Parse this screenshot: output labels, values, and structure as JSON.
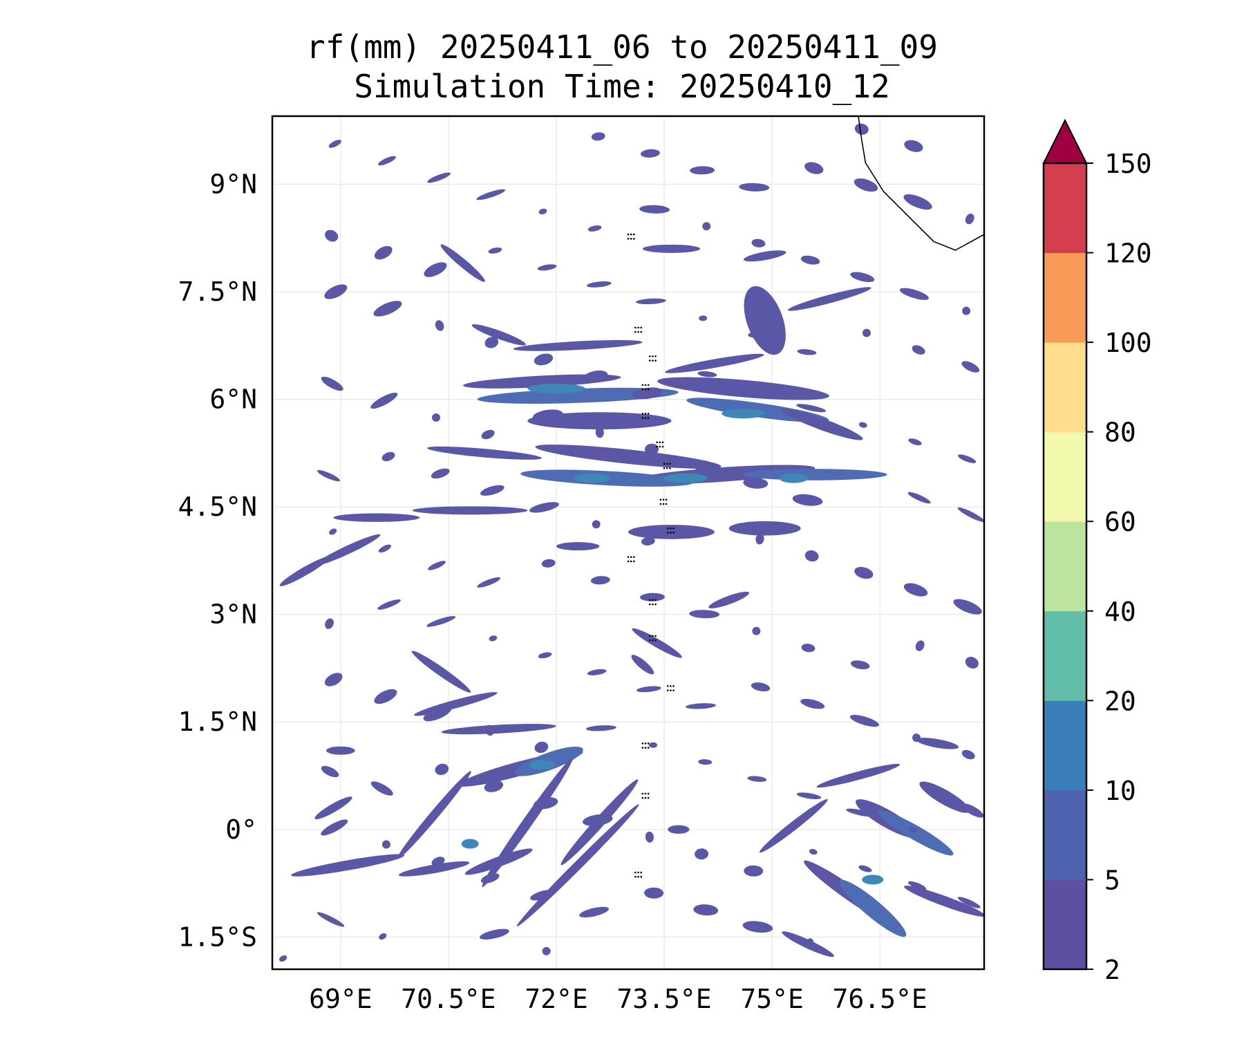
{
  "title": {
    "line1": "rf(mm) 20250411_06 to 20250411_09",
    "line2": "Simulation Time: 20250410_12"
  },
  "map": {
    "lon_labels": [
      "69°E",
      "70.5°E",
      "72°E",
      "73.5°E",
      "75°E",
      "76.5°E"
    ],
    "lon_values": [
      69,
      70.5,
      72,
      73.5,
      75,
      76.5
    ],
    "lat_labels": [
      "9°N",
      "7.5°N",
      "6°N",
      "4.5°N",
      "3°N",
      "1.5°N",
      "0°",
      "1.5°S"
    ],
    "lat_values": [
      9,
      7.5,
      6,
      4.5,
      3,
      1.5,
      0,
      -1.5
    ],
    "lon_range": [
      68.05,
      77.95
    ],
    "lat_range": [
      -1.95,
      9.95
    ],
    "grid": true
  },
  "colorbar": {
    "levels": [
      2,
      5,
      10,
      20,
      40,
      60,
      80,
      100,
      120,
      150
    ],
    "labels": [
      "2",
      "5",
      "10",
      "20",
      "40",
      "60",
      "80",
      "100",
      "120",
      "150"
    ],
    "colors": [
      "#5e4fa2",
      "#4e62b0",
      "#3a7eb8",
      "#63bea9",
      "#bbe49e",
      "#f3f9ac",
      "#fedd8d",
      "#f89b59",
      "#d43e4f"
    ],
    "extend_color": "#9e0142",
    "extend": "max",
    "units": "mm"
  },
  "rain_colors": {
    "light": "#5a58a6",
    "medium": "#4e6cb3",
    "heavy": "#3f87b7",
    "teal": "#57a9a7",
    "coast": "#000000"
  }
}
